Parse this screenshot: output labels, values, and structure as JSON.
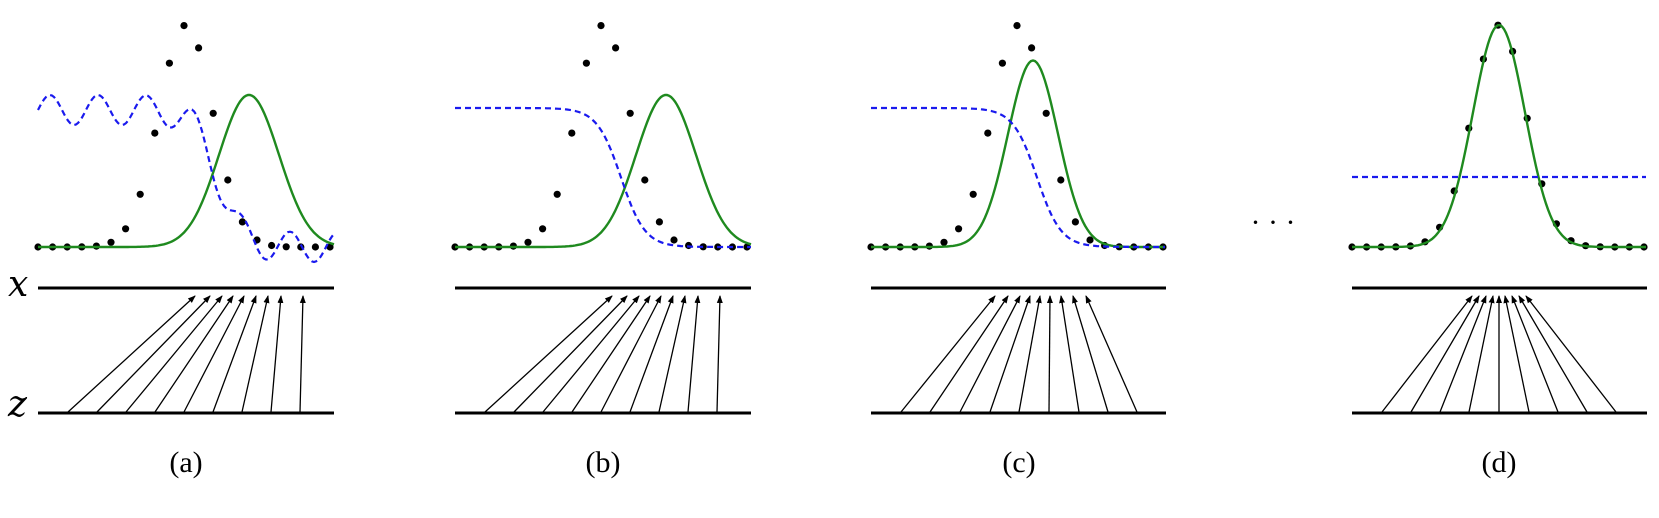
{
  "axis_labels": {
    "x": "x",
    "z": "z"
  },
  "ellipsis": "· · ·",
  "panels": [
    {
      "label": "(a)"
    },
    {
      "label": "(b)"
    },
    {
      "label": "(c)"
    },
    {
      "label": "(d)"
    }
  ],
  "colors": {
    "data": "#000000",
    "model": "#1f8a1f",
    "discriminator": "#1a1aee"
  }
}
